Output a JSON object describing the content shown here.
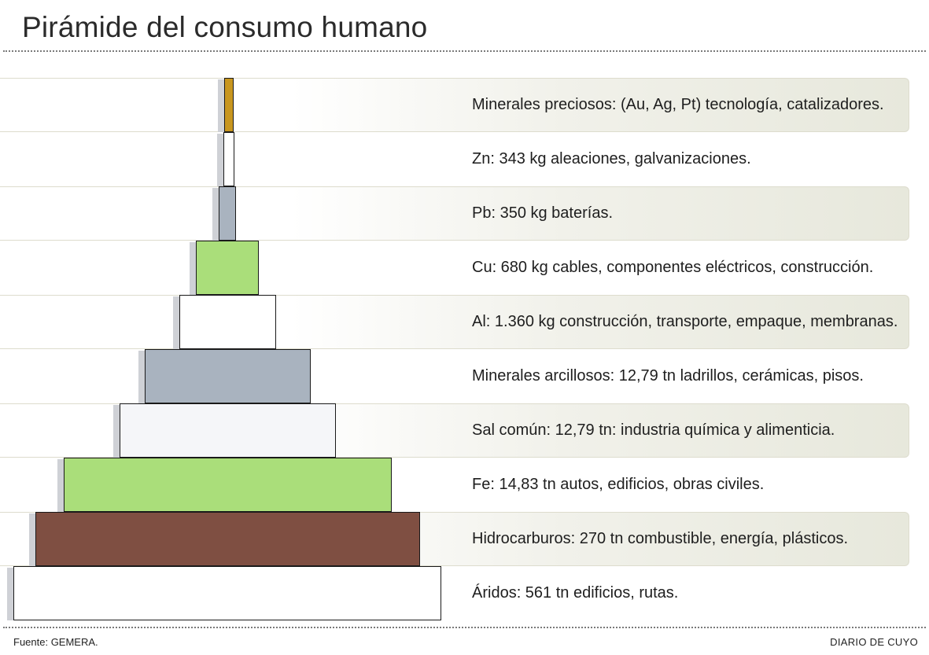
{
  "title": "Pirámide del consumo humano",
  "levels": [
    {
      "label": "Minerales preciosos: (Au, Ag, Pt) tecnología, catalizadores.",
      "color": "#c8961f",
      "shaded": true
    },
    {
      "label": "Zn: 343 kg aleaciones, galvanizaciones.",
      "color": "#ffffff",
      "shaded": false
    },
    {
      "label": "Pb: 350 kg baterías.",
      "color": "#a9b3bf",
      "shaded": true
    },
    {
      "label": "Cu: 680 kg cables, componentes eléctricos, construcción.",
      "color": "#aade7a",
      "shaded": false
    },
    {
      "label": "Al: 1.360 kg construcción, transporte, empaque, membranas.",
      "color": "#ffffff",
      "shaded": true
    },
    {
      "label": "Minerales arcillosos: 12,79 tn ladrillos, cerámicas, pisos.",
      "color": "#a9b3bf",
      "shaded": false
    },
    {
      "label": "Sal común: 12,79 tn: industria química y alimenticia.",
      "color": "#f5f6f9",
      "shaded": true
    },
    {
      "label": "Fe: 14,83 tn autos, edificios, obras civiles.",
      "color": "#aade7a",
      "shaded": false
    },
    {
      "label": "Hidrocarburos: 270 tn combustible, energía, plásticos.",
      "color": "#7f4f42",
      "shaded": true
    },
    {
      "label": "Áridos: 561 tn edificios, rutas.",
      "color": "#ffffff",
      "shaded": false
    }
  ],
  "footer": {
    "source": "Fuente: GEMERA.",
    "publisher": "DIARIO DE CUYO"
  }
}
